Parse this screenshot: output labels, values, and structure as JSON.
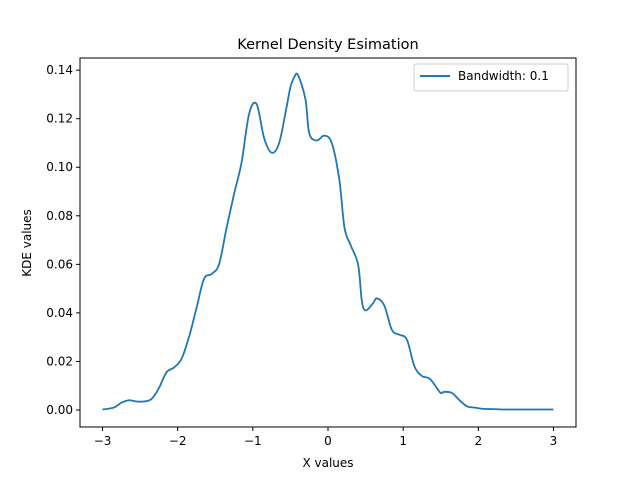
{
  "chart_data": {
    "type": "line",
    "title": "Kernel Density Esimation",
    "xlabel": "X values",
    "ylabel": "KDE values",
    "xlim": [
      -3.3,
      3.3
    ],
    "ylim": [
      -0.007,
      0.145
    ],
    "xticks": [
      -3,
      -2,
      -1,
      0,
      1,
      2,
      3
    ],
    "xtick_labels": [
      "−3",
      "−2",
      "−1",
      "0",
      "1",
      "2",
      "3"
    ],
    "yticks": [
      0.0,
      0.02,
      0.04,
      0.06,
      0.08,
      0.1,
      0.12,
      0.14
    ],
    "ytick_labels": [
      "0.00",
      "0.02",
      "0.04",
      "0.06",
      "0.08",
      "0.10",
      "0.12",
      "0.14"
    ],
    "grid": false,
    "legend_position": "top-right",
    "series": [
      {
        "name": "Bandwidth: 0.1",
        "color": "#1f77b4",
        "x": [
          -3.0,
          -2.85,
          -2.75,
          -2.65,
          -2.55,
          -2.45,
          -2.35,
          -2.25,
          -2.15,
          -2.05,
          -1.95,
          -1.85,
          -1.75,
          -1.65,
          -1.55,
          -1.45,
          -1.35,
          -1.25,
          -1.15,
          -1.05,
          -0.95,
          -0.85,
          -0.75,
          -0.65,
          -0.55,
          -0.5,
          -0.45,
          -0.4,
          -0.3,
          -0.25,
          -0.15,
          -0.05,
          0.05,
          0.15,
          0.22,
          0.3,
          0.4,
          0.45,
          0.5,
          0.6,
          0.65,
          0.75,
          0.85,
          0.95,
          1.05,
          1.15,
          1.25,
          1.35,
          1.45,
          1.5,
          1.55,
          1.65,
          1.75,
          1.85,
          1.95,
          2.05,
          2.15,
          2.25,
          2.35,
          2.45,
          2.55,
          2.65,
          2.75,
          2.85,
          3.0
        ],
        "y": [
          0.0002,
          0.001,
          0.003,
          0.004,
          0.0035,
          0.0035,
          0.0045,
          0.009,
          0.0155,
          0.0175,
          0.021,
          0.03,
          0.042,
          0.054,
          0.056,
          0.06,
          0.075,
          0.089,
          0.102,
          0.122,
          0.126,
          0.112,
          0.106,
          0.11,
          0.125,
          0.133,
          0.137,
          0.138,
          0.128,
          0.114,
          0.111,
          0.113,
          0.11,
          0.095,
          0.075,
          0.068,
          0.06,
          0.045,
          0.041,
          0.044,
          0.046,
          0.043,
          0.033,
          0.031,
          0.029,
          0.018,
          0.014,
          0.013,
          0.009,
          0.007,
          0.0075,
          0.007,
          0.004,
          0.0015,
          0.001,
          0.0005,
          0.0004,
          0.0003,
          0.0002,
          0.0002,
          0.0002,
          0.0002,
          0.0002,
          0.0002,
          0.0002
        ]
      }
    ]
  }
}
